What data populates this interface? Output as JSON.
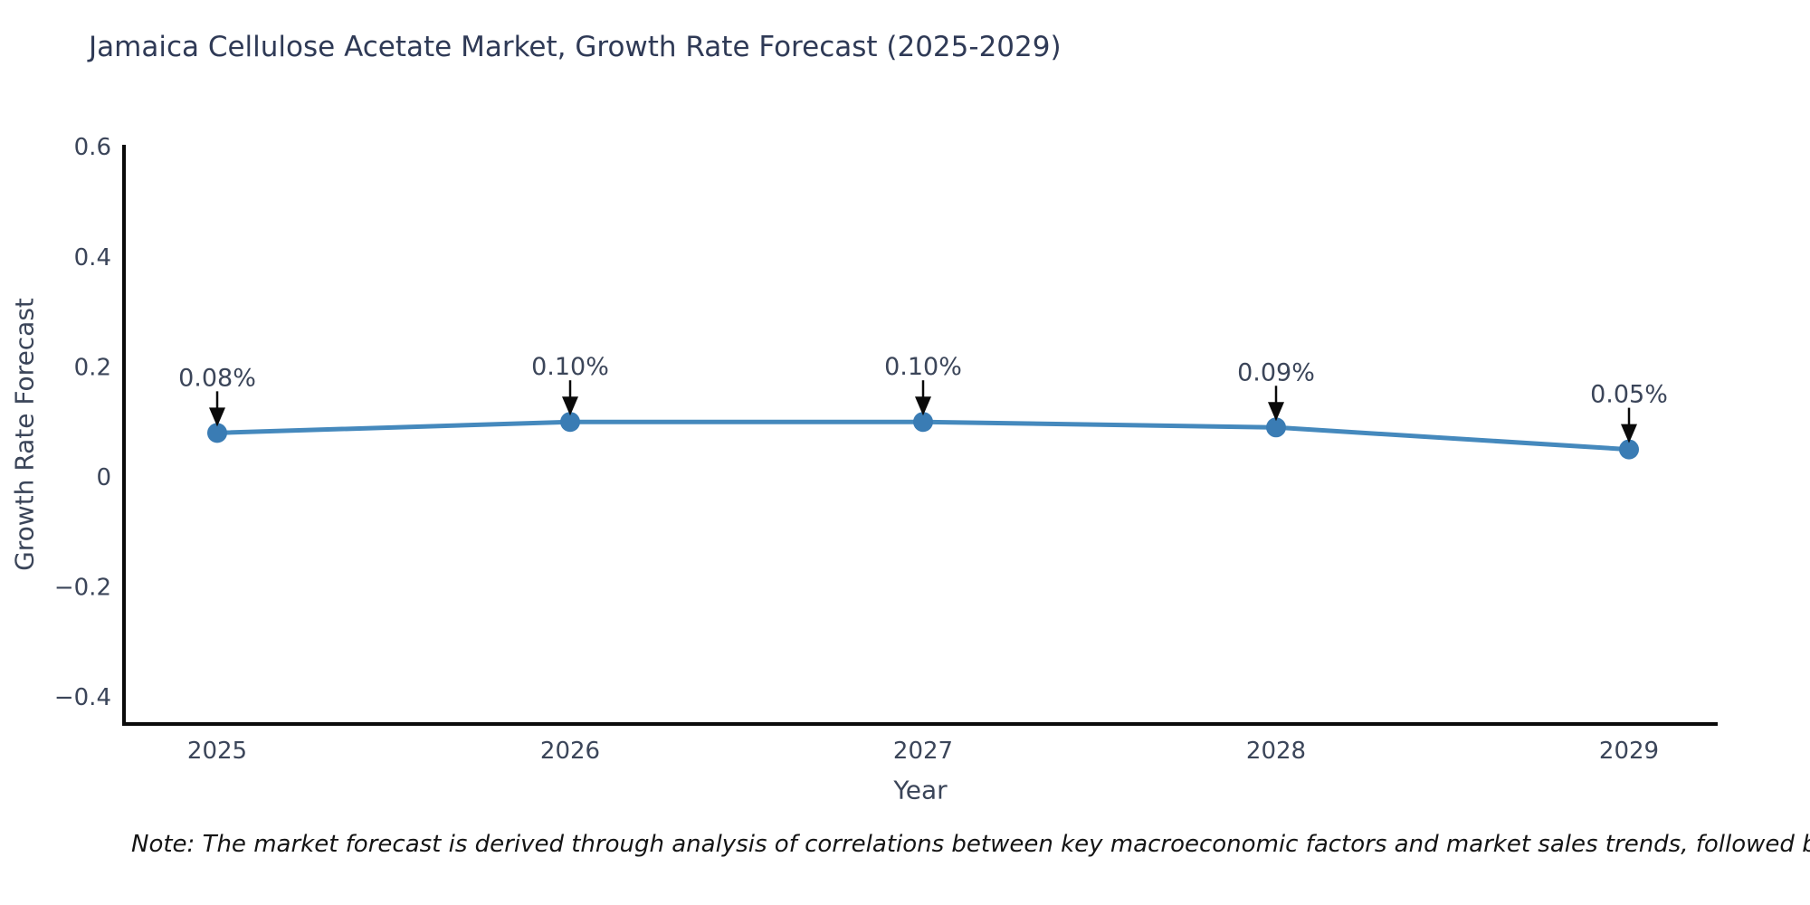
{
  "title": "Jamaica Cellulose Acetate Market, Growth Rate Forecast (2025-2029)",
  "note": "Note: The market forecast is derived through analysis of correlations between key macroeconomic factors and market sales trends, followed by predictive modeling to project future sa",
  "chart_data": {
    "type": "line",
    "title": "Jamaica Cellulose Acetate Market, Growth Rate Forecast (2025-2029)",
    "xlabel": "Year",
    "ylabel": "Growth Rate Forecast",
    "x": [
      2025,
      2026,
      2027,
      2028,
      2029
    ],
    "values": [
      0.08,
      0.1,
      0.1,
      0.09,
      0.05
    ],
    "point_labels": [
      "0.08%",
      "0.10%",
      "0.10%",
      "0.09%",
      "0.05%"
    ],
    "xtick_labels": [
      "2025",
      "2026",
      "2027",
      "2028",
      "2029"
    ],
    "ytick_values": [
      0.6,
      0.4,
      0.2,
      0,
      -0.2,
      -0.4
    ],
    "ytick_labels": [
      "0.6",
      "0.4",
      "0.2",
      "0",
      "−0.2",
      "−0.4"
    ],
    "ylim": [
      -0.45,
      0.6
    ],
    "grid": false,
    "legend": "none",
    "line_color": "#4589bd",
    "marker_color": "#3a7cb4",
    "arrow_color": "#0a0a0a",
    "spine_color": "#0a0a0a"
  }
}
